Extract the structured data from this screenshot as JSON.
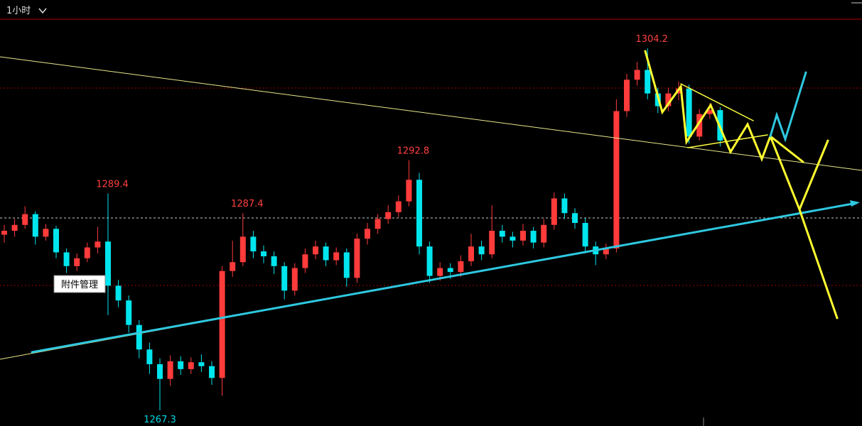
{
  "chart_data": {
    "type": "candlestick",
    "timeframe": "1小时",
    "tooltip": "附件管理",
    "up_color": "#ff3b3b",
    "down_color": "#00e5ee",
    "high_label_color": "#ff4040",
    "low_label_color": "#00d7e6",
    "ylim": [
      1265.7,
      1307.1
    ],
    "open": [
      1285.2,
      1285.6,
      1286.2,
      1287.3,
      1285.0,
      1285.8,
      1283.4,
      1282.0,
      1282.8,
      1283.9,
      1284.5,
      1280.0,
      1278.5,
      1276.0,
      1273.5,
      1272.0,
      1270.5,
      1272.3,
      1271.5,
      1272.2,
      1271.8,
      1270.6,
      1281.5,
      1282.4,
      1285.0,
      1283.5,
      1283.0,
      1282.0,
      1279.5,
      1281.8,
      1283.2,
      1284.0,
      1282.6,
      1283.4,
      1280.8,
      1284.8,
      1285.8,
      1286.8,
      1287.5,
      1288.6,
      1290.8,
      1284.0,
      1281.0,
      1281.8,
      1281.4,
      1282.5,
      1284.0,
      1283.2,
      1285.6,
      1285.0,
      1284.6,
      1285.6,
      1284.4,
      1286.2,
      1288.9,
      1287.4,
      1286.4,
      1284.0,
      1283.2,
      1283.8,
      1297.8,
      1301.0,
      1302.0,
      1299.6,
      1298.3,
      1299.6,
      1300.1,
      1295.2,
      1297.5,
      1297.9
    ],
    "high": [
      1286.2,
      1286.8,
      1288.1,
      1287.6,
      1286.3,
      1286.1,
      1283.8,
      1283.3,
      1284.4,
      1286.0,
      1289.4,
      1280.6,
      1279.0,
      1276.5,
      1274.2,
      1272.6,
      1272.9,
      1272.8,
      1272.7,
      1273.0,
      1272.3,
      1282.0,
      1284.6,
      1287.4,
      1285.6,
      1284.1,
      1283.5,
      1282.4,
      1282.3,
      1283.8,
      1284.6,
      1284.4,
      1283.9,
      1283.8,
      1285.3,
      1286.4,
      1287.3,
      1288.2,
      1289.2,
      1292.8,
      1291.5,
      1284.5,
      1282.4,
      1282.3,
      1283.1,
      1285.3,
      1284.6,
      1288.2,
      1286.2,
      1285.5,
      1286.3,
      1286.0,
      1286.8,
      1289.5,
      1289.4,
      1287.9,
      1286.9,
      1284.5,
      1284.3,
      1299.0,
      1301.6,
      1302.8,
      1304.2,
      1300.2,
      1300.2,
      1300.8,
      1300.5,
      1298.0,
      1298.6,
      1298.2
    ],
    "low": [
      1284.4,
      1285.0,
      1285.8,
      1284.2,
      1284.6,
      1282.8,
      1281.3,
      1281.5,
      1282.4,
      1283.3,
      1277.0,
      1277.8,
      1275.2,
      1272.6,
      1271.0,
      1267.3,
      1269.8,
      1270.9,
      1271.0,
      1271.2,
      1269.9,
      1268.8,
      1280.9,
      1282.0,
      1282.8,
      1282.3,
      1281.2,
      1278.6,
      1279.0,
      1281.3,
      1282.7,
      1282.0,
      1282.1,
      1279.9,
      1280.3,
      1284.2,
      1285.3,
      1286.3,
      1287.0,
      1288.1,
      1283.2,
      1280.3,
      1280.5,
      1280.7,
      1280.9,
      1282.0,
      1282.6,
      1282.8,
      1284.4,
      1283.9,
      1284.1,
      1283.8,
      1283.9,
      1285.7,
      1286.8,
      1285.8,
      1283.3,
      1282.1,
      1282.7,
      1283.4,
      1297.2,
      1300.4,
      1299.0,
      1297.6,
      1297.8,
      1298.9,
      1294.5,
      1294.8,
      1297.0,
      1294.2
    ],
    "close": [
      1285.6,
      1286.2,
      1287.3,
      1285.0,
      1285.8,
      1283.4,
      1282.0,
      1282.8,
      1283.9,
      1284.5,
      1280.0,
      1278.5,
      1276.0,
      1273.5,
      1272.0,
      1270.5,
      1272.3,
      1271.5,
      1272.2,
      1271.8,
      1270.6,
      1281.5,
      1282.4,
      1285.0,
      1283.5,
      1283.0,
      1282.0,
      1279.5,
      1281.8,
      1283.2,
      1284.0,
      1282.6,
      1283.4,
      1280.8,
      1284.8,
      1285.8,
      1286.8,
      1287.5,
      1288.6,
      1290.8,
      1284.0,
      1281.0,
      1281.8,
      1281.4,
      1282.5,
      1284.0,
      1283.2,
      1285.6,
      1285.0,
      1284.6,
      1285.6,
      1284.4,
      1286.2,
      1288.9,
      1287.4,
      1286.4,
      1284.0,
      1283.2,
      1283.8,
      1297.8,
      1301.0,
      1302.0,
      1299.6,
      1298.3,
      1299.6,
      1300.1,
      1295.2,
      1297.5,
      1297.9,
      1294.8
    ]
  }
}
